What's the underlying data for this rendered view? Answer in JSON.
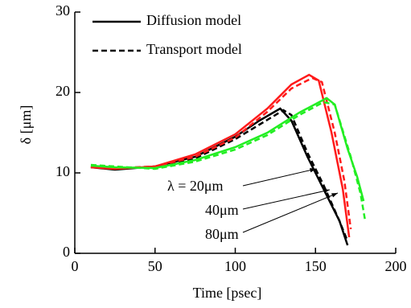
{
  "chart_data": {
    "type": "line",
    "xlabel": "Time [psec]",
    "ylabel": "δ [μm]",
    "xlim": [
      0,
      200
    ],
    "ylim": [
      0,
      30
    ],
    "xticks": [
      0,
      50,
      100,
      150,
      200
    ],
    "yticks": [
      0,
      10,
      20,
      30
    ],
    "legend": [
      {
        "label": "Diffusion model",
        "dash": false
      },
      {
        "label": "Transport model",
        "dash": true
      }
    ],
    "series": [
      {
        "color": "#000000",
        "dash": false,
        "x": [
          10,
          25,
          50,
          75,
          100,
          115,
          128,
          135,
          145,
          155,
          165,
          170
        ],
        "values": [
          10.7,
          10.4,
          10.8,
          12,
          14.5,
          16.5,
          18,
          16.5,
          12,
          8,
          4,
          1
        ]
      },
      {
        "color": "#000000",
        "dash": true,
        "x": [
          10,
          25,
          50,
          75,
          100,
          115,
          130,
          135,
          145,
          155,
          165,
          170
        ],
        "values": [
          10.8,
          10.5,
          10.8,
          11.8,
          14.2,
          16,
          17.8,
          17.2,
          12.5,
          8.5,
          4,
          1.5
        ]
      },
      {
        "color": "#ff1a1a",
        "dash": false,
        "x": [
          10,
          25,
          50,
          75,
          100,
          120,
          135,
          146,
          152,
          160,
          167,
          171
        ],
        "values": [
          10.7,
          10.5,
          10.8,
          12.3,
          14.8,
          18,
          21,
          22.2,
          21.5,
          15,
          8,
          2
        ]
      },
      {
        "color": "#ff1a1a",
        "dash": true,
        "x": [
          10,
          25,
          50,
          75,
          100,
          120,
          135,
          148,
          154,
          162,
          168,
          172
        ],
        "values": [
          10.8,
          10.6,
          10.8,
          12,
          14.4,
          17.6,
          20.5,
          21.8,
          21.3,
          15,
          9,
          3
        ]
      },
      {
        "color": "#22ee22",
        "dash": false,
        "x": [
          10,
          25,
          50,
          75,
          100,
          120,
          140,
          157,
          162,
          170,
          176,
          180
        ],
        "values": [
          10.9,
          10.7,
          10.6,
          11.6,
          13.2,
          15,
          17.5,
          19.3,
          18.5,
          13,
          9.5,
          6.5
        ]
      },
      {
        "color": "#22ee22",
        "dash": true,
        "x": [
          10,
          25,
          50,
          75,
          100,
          120,
          140,
          155,
          162,
          172,
          178,
          181
        ],
        "values": [
          11,
          10.8,
          10.5,
          11.4,
          12.9,
          14.7,
          17.2,
          18.8,
          18.5,
          12,
          7.5,
          4
        ]
      }
    ],
    "annotations": [
      "λ =  20μm",
      "40μm",
      "80μm"
    ]
  }
}
